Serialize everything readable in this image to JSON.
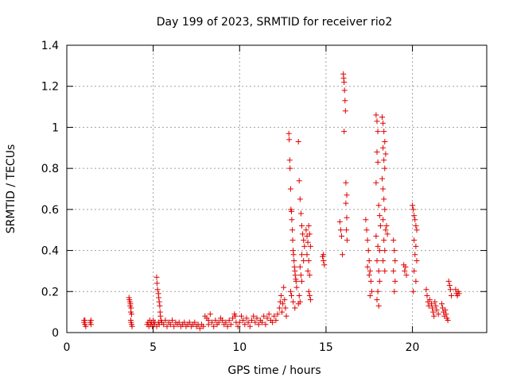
{
  "chart_data": {
    "type": "scatter",
    "title": "Day 199 of 2023, SRMTID for receiver rio2",
    "xlabel": "GPS time / hours",
    "ylabel": "SRMTID / TECUs",
    "xlim": [
      0,
      24.3
    ],
    "ylim": [
      0,
      1.4
    ],
    "x_ticks": [
      "0",
      "5",
      "10",
      "15",
      "20"
    ],
    "y_ticks": [
      "0",
      "0.2",
      "0.4",
      "0.6",
      "0.8",
      "1",
      "1.2",
      "1.4"
    ],
    "x_tick_values": [
      0,
      5,
      10,
      15,
      20
    ],
    "y_tick_values": [
      0,
      0.2,
      0.4,
      0.6,
      0.8,
      1.0,
      1.2,
      1.4
    ],
    "grid": true,
    "marker": "+",
    "marker_color": "#e00000",
    "series": [
      {
        "name": "SRMTID",
        "points": [
          [
            1.0,
            0.06
          ],
          [
            1.0,
            0.05
          ],
          [
            1.05,
            0.04
          ],
          [
            1.05,
            0.06
          ],
          [
            1.1,
            0.03
          ],
          [
            1.35,
            0.05
          ],
          [
            1.4,
            0.06
          ],
          [
            1.4,
            0.04
          ],
          [
            3.6,
            0.17
          ],
          [
            3.62,
            0.16
          ],
          [
            3.65,
            0.15
          ],
          [
            3.67,
            0.13
          ],
          [
            3.68,
            0.14
          ],
          [
            3.7,
            0.1
          ],
          [
            3.72,
            0.12
          ],
          [
            3.75,
            0.09
          ],
          [
            3.7,
            0.06
          ],
          [
            3.72,
            0.05
          ],
          [
            3.75,
            0.04
          ],
          [
            3.78,
            0.03
          ],
          [
            4.65,
            0.04
          ],
          [
            4.7,
            0.05
          ],
          [
            4.75,
            0.03
          ],
          [
            4.8,
            0.06
          ],
          [
            4.85,
            0.04
          ],
          [
            4.9,
            0.05
          ],
          [
            4.95,
            0.03
          ],
          [
            5.0,
            0.06
          ],
          [
            5.05,
            0.04
          ],
          [
            5.1,
            0.05
          ],
          [
            5.2,
            0.27
          ],
          [
            5.22,
            0.24
          ],
          [
            5.25,
            0.21
          ],
          [
            5.3,
            0.19
          ],
          [
            5.32,
            0.17
          ],
          [
            5.35,
            0.15
          ],
          [
            5.38,
            0.13
          ],
          [
            5.4,
            0.1
          ],
          [
            5.42,
            0.08
          ],
          [
            5.45,
            0.06
          ],
          [
            5.3,
            0.05
          ],
          [
            5.35,
            0.04
          ],
          [
            5.2,
            0.03
          ],
          [
            5.5,
            0.05
          ],
          [
            5.6,
            0.04
          ],
          [
            5.7,
            0.06
          ],
          [
            5.8,
            0.03
          ],
          [
            5.9,
            0.05
          ],
          [
            6.0,
            0.04
          ],
          [
            6.1,
            0.06
          ],
          [
            6.2,
            0.03
          ],
          [
            6.3,
            0.05
          ],
          [
            6.4,
            0.04
          ],
          [
            6.5,
            0.05
          ],
          [
            6.6,
            0.03
          ],
          [
            6.7,
            0.04
          ],
          [
            6.8,
            0.05
          ],
          [
            6.9,
            0.03
          ],
          [
            7.0,
            0.04
          ],
          [
            7.1,
            0.05
          ],
          [
            7.2,
            0.03
          ],
          [
            7.3,
            0.04
          ],
          [
            7.4,
            0.05
          ],
          [
            7.5,
            0.03
          ],
          [
            7.6,
            0.04
          ],
          [
            7.7,
            0.02
          ],
          [
            7.8,
            0.04
          ],
          [
            7.9,
            0.03
          ],
          [
            8.0,
            0.08
          ],
          [
            8.1,
            0.07
          ],
          [
            8.2,
            0.06
          ],
          [
            8.3,
            0.09
          ],
          [
            8.2,
            0.04
          ],
          [
            8.4,
            0.05
          ],
          [
            8.5,
            0.03
          ],
          [
            8.6,
            0.06
          ],
          [
            8.7,
            0.04
          ],
          [
            8.8,
            0.05
          ],
          [
            8.9,
            0.07
          ],
          [
            9.0,
            0.06
          ],
          [
            9.1,
            0.04
          ],
          [
            9.2,
            0.05
          ],
          [
            9.3,
            0.03
          ],
          [
            9.4,
            0.06
          ],
          [
            9.5,
            0.04
          ],
          [
            9.6,
            0.07
          ],
          [
            9.7,
            0.09
          ],
          [
            9.75,
            0.08
          ],
          [
            9.8,
            0.05
          ],
          [
            9.9,
            0.03
          ],
          [
            10.0,
            0.05
          ],
          [
            10.1,
            0.08
          ],
          [
            10.2,
            0.06
          ],
          [
            10.3,
            0.04
          ],
          [
            10.4,
            0.07
          ],
          [
            10.5,
            0.05
          ],
          [
            10.6,
            0.03
          ],
          [
            10.7,
            0.06
          ],
          [
            10.8,
            0.08
          ],
          [
            10.9,
            0.05
          ],
          [
            11.0,
            0.07
          ],
          [
            11.1,
            0.04
          ],
          [
            11.2,
            0.06
          ],
          [
            11.3,
            0.05
          ],
          [
            11.4,
            0.08
          ],
          [
            11.5,
            0.04
          ],
          [
            11.6,
            0.07
          ],
          [
            11.7,
            0.09
          ],
          [
            11.8,
            0.06
          ],
          [
            11.9,
            0.05
          ],
          [
            12.0,
            0.08
          ],
          [
            12.1,
            0.06
          ],
          [
            12.2,
            0.09
          ],
          [
            12.3,
            0.12
          ],
          [
            12.35,
            0.15
          ],
          [
            12.4,
            0.18
          ],
          [
            12.45,
            0.1
          ],
          [
            12.5,
            0.14
          ],
          [
            12.55,
            0.22
          ],
          [
            12.6,
            0.16
          ],
          [
            12.65,
            0.12
          ],
          [
            12.7,
            0.08
          ],
          [
            12.85,
            0.97
          ],
          [
            12.87,
            0.94
          ],
          [
            12.9,
            0.84
          ],
          [
            12.92,
            0.8
          ],
          [
            12.95,
            0.7
          ],
          [
            12.97,
            0.6
          ],
          [
            13.0,
            0.59
          ],
          [
            13.02,
            0.55
          ],
          [
            13.05,
            0.5
          ],
          [
            13.07,
            0.45
          ],
          [
            13.1,
            0.4
          ],
          [
            13.12,
            0.38
          ],
          [
            13.15,
            0.35
          ],
          [
            13.17,
            0.32
          ],
          [
            13.2,
            0.3
          ],
          [
            13.22,
            0.28
          ],
          [
            13.25,
            0.26
          ],
          [
            13.27,
            0.25
          ],
          [
            13.3,
            0.22
          ],
          [
            13.0,
            0.18
          ],
          [
            13.1,
            0.15
          ],
          [
            13.2,
            0.12
          ],
          [
            12.95,
            0.2
          ],
          [
            13.4,
            0.93
          ],
          [
            13.45,
            0.74
          ],
          [
            13.5,
            0.65
          ],
          [
            13.55,
            0.58
          ],
          [
            13.6,
            0.52
          ],
          [
            13.65,
            0.48
          ],
          [
            13.7,
            0.45
          ],
          [
            13.75,
            0.42
          ],
          [
            13.6,
            0.38
          ],
          [
            13.7,
            0.35
          ],
          [
            13.5,
            0.32
          ],
          [
            13.55,
            0.28
          ],
          [
            13.6,
            0.25
          ],
          [
            13.45,
            0.18
          ],
          [
            13.5,
            0.15
          ],
          [
            13.4,
            0.14
          ],
          [
            13.85,
            0.5
          ],
          [
            13.9,
            0.47
          ],
          [
            13.95,
            0.44
          ],
          [
            14.0,
            0.52
          ],
          [
            14.05,
            0.48
          ],
          [
            14.1,
            0.42
          ],
          [
            13.9,
            0.38
          ],
          [
            14.0,
            0.35
          ],
          [
            13.95,
            0.3
          ],
          [
            14.05,
            0.28
          ],
          [
            14.0,
            0.2
          ],
          [
            14.05,
            0.18
          ],
          [
            14.1,
            0.16
          ],
          [
            14.8,
            0.37
          ],
          [
            14.85,
            0.35
          ],
          [
            14.9,
            0.33
          ],
          [
            14.85,
            0.38
          ],
          [
            15.8,
            0.54
          ],
          [
            15.85,
            0.5
          ],
          [
            15.9,
            0.47
          ],
          [
            15.95,
            0.38
          ],
          [
            16.0,
            1.26
          ],
          [
            16.02,
            1.24
          ],
          [
            16.05,
            1.22
          ],
          [
            16.07,
            1.18
          ],
          [
            16.1,
            1.13
          ],
          [
            16.12,
            1.08
          ],
          [
            16.05,
            0.98
          ],
          [
            16.15,
            0.73
          ],
          [
            16.2,
            0.67
          ],
          [
            16.15,
            0.63
          ],
          [
            16.2,
            0.56
          ],
          [
            16.18,
            0.5
          ],
          [
            16.22,
            0.45
          ],
          [
            17.3,
            0.55
          ],
          [
            17.35,
            0.5
          ],
          [
            17.4,
            0.45
          ],
          [
            17.45,
            0.4
          ],
          [
            17.5,
            0.35
          ],
          [
            17.55,
            0.3
          ],
          [
            17.6,
            0.25
          ],
          [
            17.65,
            0.2
          ],
          [
            17.4,
            0.32
          ],
          [
            17.5,
            0.28
          ],
          [
            17.55,
            0.18
          ],
          [
            17.9,
            1.06
          ],
          [
            17.95,
            1.03
          ],
          [
            18.0,
            0.98
          ],
          [
            17.95,
            0.88
          ],
          [
            18.0,
            0.83
          ],
          [
            17.9,
            0.73
          ],
          [
            18.05,
            0.62
          ],
          [
            18.1,
            0.57
          ],
          [
            18.15,
            0.52
          ],
          [
            17.9,
            0.47
          ],
          [
            18.0,
            0.42
          ],
          [
            18.1,
            0.4
          ],
          [
            17.95,
            0.35
          ],
          [
            18.05,
            0.3
          ],
          [
            18.1,
            0.25
          ],
          [
            18.0,
            0.2
          ],
          [
            17.95,
            0.16
          ],
          [
            18.05,
            0.13
          ],
          [
            18.25,
            1.05
          ],
          [
            18.3,
            1.02
          ],
          [
            18.35,
            0.98
          ],
          [
            18.4,
            0.93
          ],
          [
            18.3,
            0.9
          ],
          [
            18.45,
            0.87
          ],
          [
            18.35,
            0.84
          ],
          [
            18.4,
            0.8
          ],
          [
            18.25,
            0.75
          ],
          [
            18.3,
            0.7
          ],
          [
            18.35,
            0.65
          ],
          [
            18.4,
            0.6
          ],
          [
            18.3,
            0.55
          ],
          [
            18.45,
            0.5
          ],
          [
            18.35,
            0.45
          ],
          [
            18.4,
            0.4
          ],
          [
            18.3,
            0.35
          ],
          [
            18.4,
            0.3
          ],
          [
            18.5,
            0.52
          ],
          [
            18.55,
            0.48
          ],
          [
            18.9,
            0.45
          ],
          [
            18.95,
            0.4
          ],
          [
            19.0,
            0.35
          ],
          [
            18.9,
            0.3
          ],
          [
            19.0,
            0.25
          ],
          [
            18.95,
            0.2
          ],
          [
            19.5,
            0.33
          ],
          [
            19.55,
            0.3
          ],
          [
            19.6,
            0.32
          ],
          [
            19.65,
            0.28
          ],
          [
            20.0,
            0.62
          ],
          [
            20.05,
            0.6
          ],
          [
            20.1,
            0.57
          ],
          [
            20.15,
            0.55
          ],
          [
            20.2,
            0.52
          ],
          [
            20.25,
            0.5
          ],
          [
            20.1,
            0.45
          ],
          [
            20.2,
            0.42
          ],
          [
            20.15,
            0.38
          ],
          [
            20.25,
            0.35
          ],
          [
            20.1,
            0.3
          ],
          [
            20.2,
            0.25
          ],
          [
            20.05,
            0.2
          ],
          [
            20.8,
            0.21
          ],
          [
            20.85,
            0.18
          ],
          [
            20.9,
            0.15
          ],
          [
            20.95,
            0.13
          ],
          [
            21.0,
            0.16
          ],
          [
            21.1,
            0.14
          ],
          [
            21.15,
            0.12
          ],
          [
            21.2,
            0.1
          ],
          [
            21.25,
            0.08
          ],
          [
            21.3,
            0.15
          ],
          [
            21.35,
            0.13
          ],
          [
            21.4,
            0.11
          ],
          [
            21.5,
            0.09
          ],
          [
            21.7,
            0.14
          ],
          [
            21.75,
            0.12
          ],
          [
            21.8,
            0.1
          ],
          [
            21.85,
            0.08
          ],
          [
            21.9,
            0.11
          ],
          [
            21.95,
            0.09
          ],
          [
            22.0,
            0.07
          ],
          [
            22.05,
            0.06
          ],
          [
            22.1,
            0.25
          ],
          [
            22.15,
            0.23
          ],
          [
            22.2,
            0.21
          ],
          [
            22.25,
            0.18
          ],
          [
            22.5,
            0.21
          ],
          [
            22.55,
            0.19
          ],
          [
            22.6,
            0.18
          ],
          [
            22.65,
            0.2
          ],
          [
            22.7,
            0.19
          ]
        ]
      }
    ]
  }
}
